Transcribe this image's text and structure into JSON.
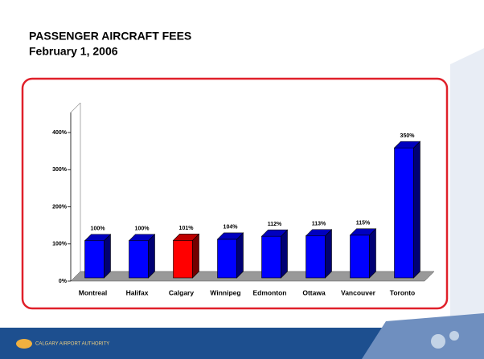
{
  "slide": {
    "title_line1": "PASSENGER AIRCRAFT  FEES",
    "title_line2": "February 1, 2006",
    "footer_logo": "CALGARY AIRPORT AUTHORITY"
  },
  "chart_data": {
    "type": "bar",
    "categories": [
      "Montreal",
      "Halifax",
      "Calgary",
      "Winnipeg",
      "Edmonton",
      "Ottawa",
      "Vancouver",
      "Toronto"
    ],
    "values": [
      100,
      100,
      101,
      104,
      112,
      113,
      115,
      350
    ],
    "value_labels": [
      "100%",
      "100%",
      "101%",
      "104%",
      "112%",
      "113%",
      "115%",
      "350%"
    ],
    "colors": [
      "#0000ff",
      "#0000ff",
      "#ff0000",
      "#0000ff",
      "#0000ff",
      "#0000ff",
      "#0000ff",
      "#0000ff"
    ],
    "ylim": [
      0,
      480
    ],
    "yticks": [
      {
        "value": 0,
        "label": "0%"
      },
      {
        "value": 100,
        "label": "100%"
      },
      {
        "value": 200,
        "label": "200%"
      },
      {
        "value": 300,
        "label": "300%"
      },
      {
        "value": 400,
        "label": "400%"
      }
    ]
  }
}
